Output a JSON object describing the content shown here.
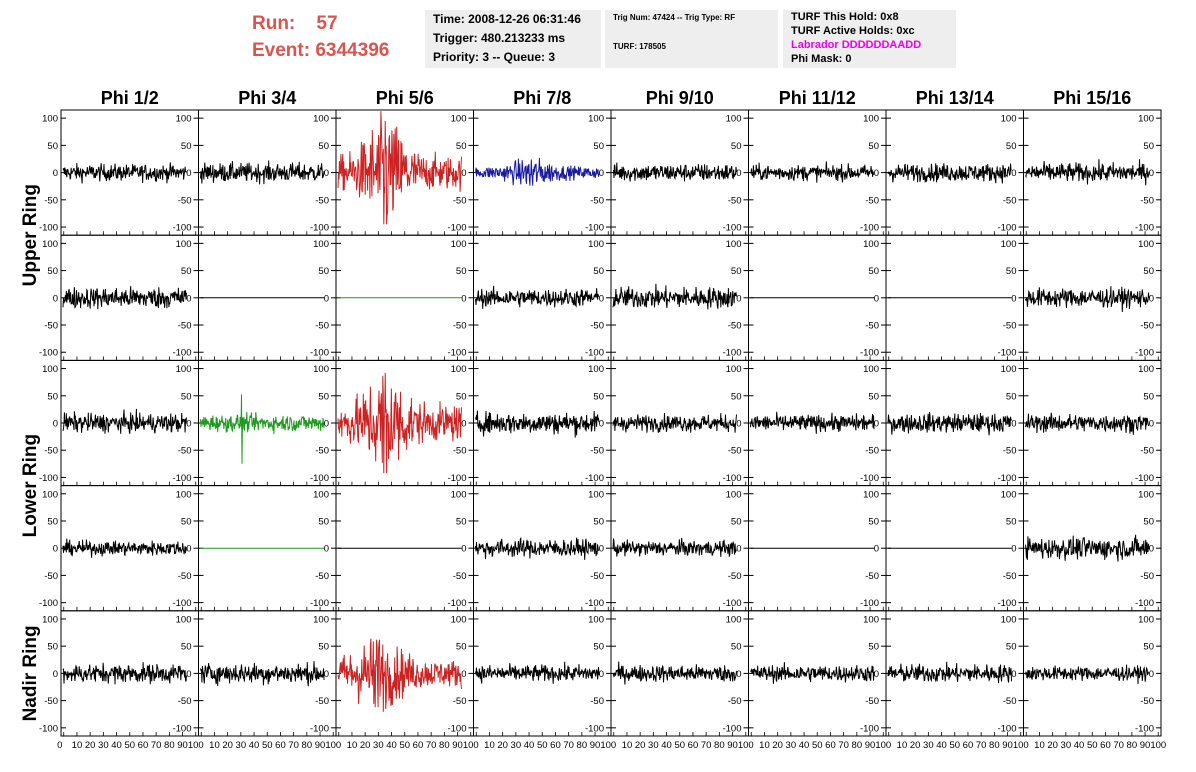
{
  "header": {
    "run_label": "Run:",
    "run_value": "57",
    "event_label": "Event:",
    "event_value": "6344396",
    "time": "Time: 2008-12-26 06:31:46",
    "trigger": "Trigger: 480.213233 ms",
    "priority": "Priority: 3 -- Queue: 3",
    "trig_num": "Trig Num: 47424 -- Trig Type: RF",
    "turf": "TURF: 178505",
    "turf_this_hold": "TURF This Hold: 0x8",
    "turf_active_holds": "TURF Active Holds: 0xc",
    "labrador": "Labrador DDDDDDAADD",
    "phi_mask": "Phi Mask: 0"
  },
  "chart_data": {
    "type": "line",
    "columns": [
      "Phi 1/2",
      "Phi 3/4",
      "Phi 5/6",
      "Phi 7/8",
      "Phi 9/10",
      "Phi 11/12",
      "Phi 13/14",
      "Phi 15/16"
    ],
    "ring_labels": [
      "Upper Ring",
      "Lower Ring",
      "Nadir Ring"
    ],
    "rows": 5,
    "ylim": [
      -115,
      115
    ],
    "y_ticks": [
      -100,
      -50,
      0,
      50,
      100
    ],
    "xlim": [
      0,
      100
    ],
    "x_tick_labels": [
      "0",
      "10",
      "20",
      "30",
      "40",
      "50",
      "60",
      "70",
      "80",
      "90",
      "100"
    ],
    "colors": {
      "black": "#000000",
      "red": "#cc2222",
      "blue": "#1a1aa0",
      "green": "#1e9a1e"
    },
    "panels": [
      {
        "row": 0,
        "col": 0,
        "style": "noise",
        "amp": 14,
        "color": "black"
      },
      {
        "row": 0,
        "col": 1,
        "style": "noise",
        "amp": 16,
        "color": "black"
      },
      {
        "row": 0,
        "col": 2,
        "style": "burst",
        "amp": 95,
        "center": 38,
        "width": 18,
        "base": 28,
        "color": "red"
      },
      {
        "row": 0,
        "col": 3,
        "style": "burst",
        "amp": 24,
        "center": 45,
        "width": 20,
        "base": 10,
        "color": "blue"
      },
      {
        "row": 0,
        "col": 4,
        "style": "noise",
        "amp": 15,
        "color": "black"
      },
      {
        "row": 0,
        "col": 5,
        "style": "noise",
        "amp": 13,
        "color": "black"
      },
      {
        "row": 0,
        "col": 6,
        "style": "noise",
        "amp": 15,
        "color": "black"
      },
      {
        "row": 0,
        "col": 7,
        "style": "noise",
        "amp": 16,
        "color": "black"
      },
      {
        "row": 1,
        "col": 0,
        "style": "noise",
        "amp": 18,
        "color": "black"
      },
      {
        "row": 1,
        "col": 1,
        "style": "flat",
        "color": "black"
      },
      {
        "row": 1,
        "col": 2,
        "style": "flat",
        "color": "green"
      },
      {
        "row": 1,
        "col": 3,
        "style": "noise",
        "amp": 15,
        "color": "black"
      },
      {
        "row": 1,
        "col": 4,
        "style": "noise",
        "amp": 18,
        "color": "black"
      },
      {
        "row": 1,
        "col": 5,
        "style": "flat",
        "color": "black"
      },
      {
        "row": 1,
        "col": 6,
        "style": "flat",
        "color": "black"
      },
      {
        "row": 1,
        "col": 7,
        "style": "noise",
        "amp": 16,
        "color": "black"
      },
      {
        "row": 2,
        "col": 0,
        "style": "noise",
        "amp": 16,
        "color": "black"
      },
      {
        "row": 2,
        "col": 1,
        "style": "spike",
        "amp": 14,
        "spike_at": 33,
        "spike": 75,
        "color": "green"
      },
      {
        "row": 2,
        "col": 2,
        "style": "burst",
        "amp": 92,
        "center": 38,
        "width": 18,
        "base": 30,
        "color": "red"
      },
      {
        "row": 2,
        "col": 3,
        "style": "noise",
        "amp": 18,
        "color": "black"
      },
      {
        "row": 2,
        "col": 4,
        "style": "noise",
        "amp": 14,
        "color": "black"
      },
      {
        "row": 2,
        "col": 5,
        "style": "noise",
        "amp": 14,
        "color": "black"
      },
      {
        "row": 2,
        "col": 6,
        "style": "noise",
        "amp": 16,
        "color": "black"
      },
      {
        "row": 2,
        "col": 7,
        "style": "noise",
        "amp": 15,
        "color": "black"
      },
      {
        "row": 3,
        "col": 0,
        "style": "noise",
        "amp": 12,
        "color": "black"
      },
      {
        "row": 3,
        "col": 1,
        "style": "flat",
        "color": "green"
      },
      {
        "row": 3,
        "col": 2,
        "style": "flat",
        "color": "black"
      },
      {
        "row": 3,
        "col": 3,
        "style": "noise",
        "amp": 15,
        "color": "black"
      },
      {
        "row": 3,
        "col": 4,
        "style": "noise",
        "amp": 13,
        "color": "black"
      },
      {
        "row": 3,
        "col": 5,
        "style": "flat",
        "color": "black"
      },
      {
        "row": 3,
        "col": 6,
        "style": "flat",
        "color": "black"
      },
      {
        "row": 3,
        "col": 7,
        "style": "noise",
        "amp": 18,
        "color": "black"
      },
      {
        "row": 4,
        "col": 0,
        "style": "noise",
        "amp": 16,
        "color": "black"
      },
      {
        "row": 4,
        "col": 1,
        "style": "noise",
        "amp": 17,
        "color": "black"
      },
      {
        "row": 4,
        "col": 2,
        "style": "burst",
        "amp": 62,
        "center": 32,
        "width": 22,
        "base": 22,
        "color": "red"
      },
      {
        "row": 4,
        "col": 3,
        "style": "noise",
        "amp": 14,
        "color": "black"
      },
      {
        "row": 4,
        "col": 4,
        "style": "noise",
        "amp": 14,
        "color": "black"
      },
      {
        "row": 4,
        "col": 5,
        "style": "noise",
        "amp": 14,
        "color": "black"
      },
      {
        "row": 4,
        "col": 6,
        "style": "noise",
        "amp": 15,
        "color": "black"
      },
      {
        "row": 4,
        "col": 7,
        "style": "noise",
        "amp": 12,
        "color": "black"
      }
    ]
  }
}
